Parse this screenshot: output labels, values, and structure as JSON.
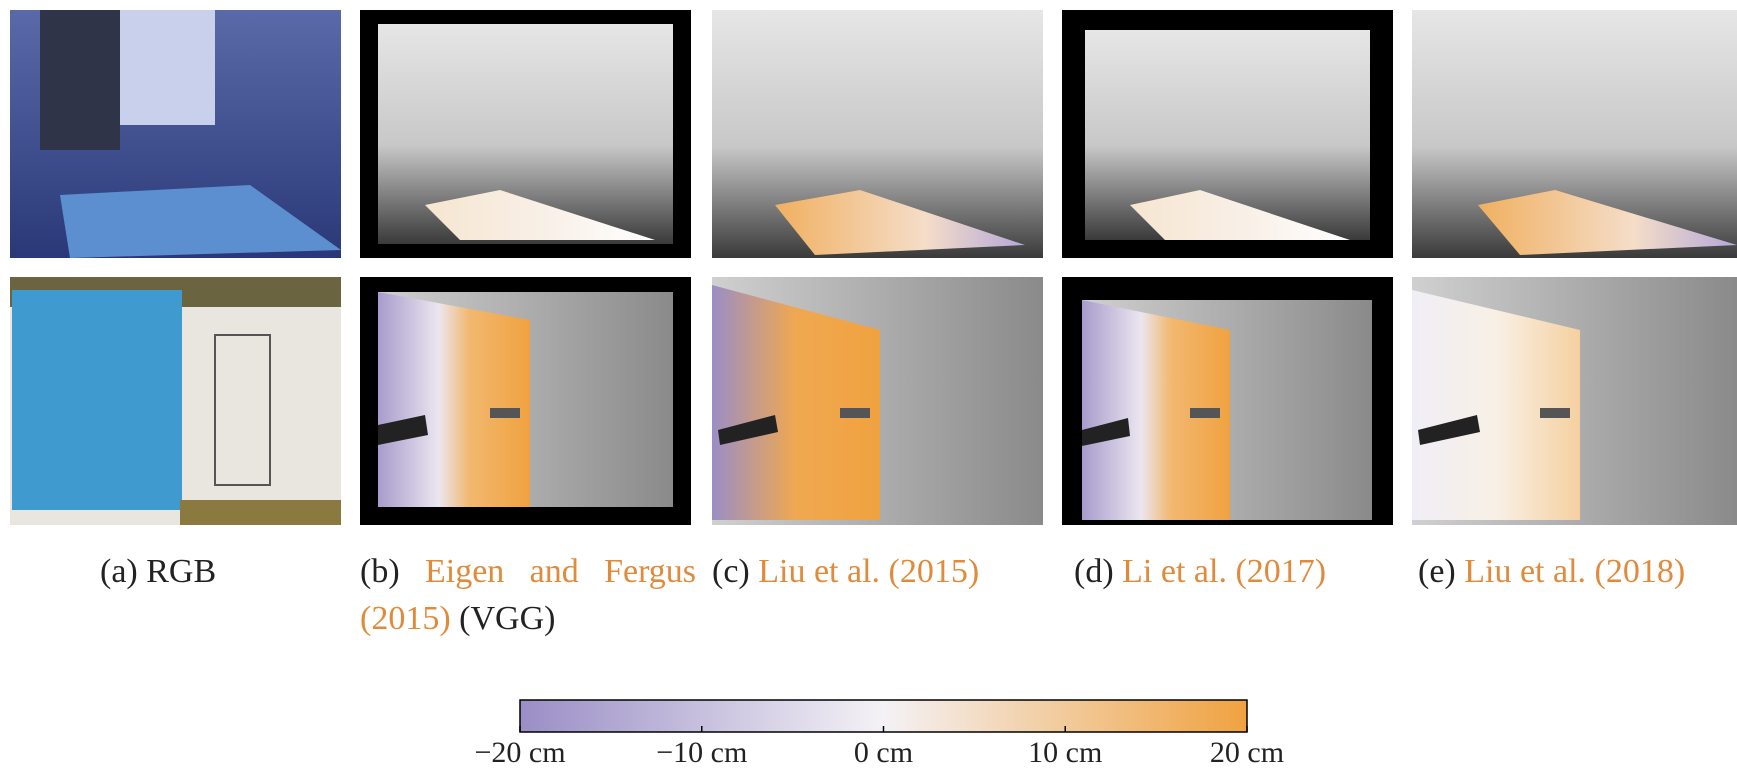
{
  "captions": [
    {
      "tag": "(a)",
      "text": "RGB"
    },
    {
      "tag": "(b)",
      "cite": "Eigen and Fergus (2015)",
      "note": "(VGG)"
    },
    {
      "tag": "(c)",
      "cite": "Liu et al. (2015)"
    },
    {
      "tag": "(d)",
      "cite": "Li et al. (2017)"
    },
    {
      "tag": "(e)",
      "cite": "Liu et al. (2018)"
    }
  ],
  "colorbar": {
    "range": [
      -20,
      20
    ],
    "colors": [
      "#9a8ec6",
      "#f4f2f6",
      "#f0a240"
    ],
    "ticks": [
      {
        "value": -20,
        "label": "−20 cm"
      },
      {
        "value": -10,
        "label": "−10 cm"
      },
      {
        "value": 0,
        "label": "0 cm"
      },
      {
        "value": 10,
        "label": "10 cm"
      },
      {
        "value": 20,
        "label": "20 cm"
      }
    ]
  }
}
